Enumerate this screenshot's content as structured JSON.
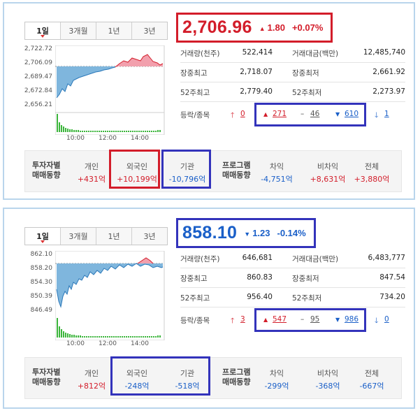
{
  "tabs": [
    "1일",
    "3개월",
    "1년",
    "3년"
  ],
  "panels": [
    {
      "price": "2,706.96",
      "change": "1.80",
      "change_pct": "+0.07%",
      "y_ticks": [
        "2,722.72",
        "2,706.09",
        "2,689.47",
        "2,672.84",
        "2,656.21"
      ],
      "x_ticks": [
        "10:00",
        "12:00",
        "14:00"
      ],
      "stats": [
        {
          "l1": "거래량(천주)",
          "v1": "522,414",
          "l2": "거래대금(백만)",
          "v2": "12,485,740"
        },
        {
          "l1": "장중최고",
          "v1": "2,718.07",
          "l2": "장중최저",
          "v2": "2,661.92"
        },
        {
          "l1": "52주최고",
          "v1": "2,779.40",
          "l2": "52주최저",
          "v2": "2,273.97"
        }
      ],
      "updown": {
        "label": "등락/종목",
        "upper": "0",
        "up": "271",
        "flat": "46",
        "down": "610",
        "lower": "1"
      },
      "investors": {
        "title1": "투자자별",
        "title2": "매매동향",
        "individual_label": "개인",
        "individual": "+431억",
        "foreign_label": "외국인",
        "foreign": "+10,199억",
        "institution_label": "기관",
        "institution": "-10,796억",
        "program1": "프로그램",
        "program2": "매매동향",
        "arb_label": "차익",
        "arb": "-4,751억",
        "nonarb_label": "비차익",
        "nonarb": "+8,631억",
        "total_label": "전체",
        "total": "+3,880억"
      }
    },
    {
      "price": "858.10",
      "change": "1.23",
      "change_pct": "-0.14%",
      "y_ticks": [
        "862.10",
        "858.20",
        "854.30",
        "850.39",
        "846.49"
      ],
      "x_ticks": [
        "10:00",
        "12:00",
        "14:00"
      ],
      "stats": [
        {
          "l1": "거래량(천주)",
          "v1": "646,681",
          "l2": "거래대금(백만)",
          "v2": "6,483,777"
        },
        {
          "l1": "장중최고",
          "v1": "860.83",
          "l2": "장중최저",
          "v2": "847.54"
        },
        {
          "l1": "52주최고",
          "v1": "956.40",
          "l2": "52주최저",
          "v2": "734.20"
        }
      ],
      "updown": {
        "label": "등락/종목",
        "upper": "3",
        "up": "547",
        "flat": "95",
        "down": "986",
        "lower": "0"
      },
      "investors": {
        "title1": "투자자별",
        "title2": "매매동향",
        "individual_label": "개인",
        "individual": "+812억",
        "foreign_label": "외국인",
        "foreign": "-248억",
        "institution_label": "기관",
        "institution": "-518억",
        "program1": "프로그램",
        "program2": "매매동향",
        "arb_label": "차익",
        "arb": "-299억",
        "nonarb_label": "비차익",
        "nonarb": "-368억",
        "total_label": "전체",
        "total": "-667억"
      }
    }
  ],
  "colors": {
    "up": "#d31d2a",
    "down": "#1a5fc8",
    "highlight_blue": "#3333bb",
    "panel_border": "#b9d5ec"
  }
}
